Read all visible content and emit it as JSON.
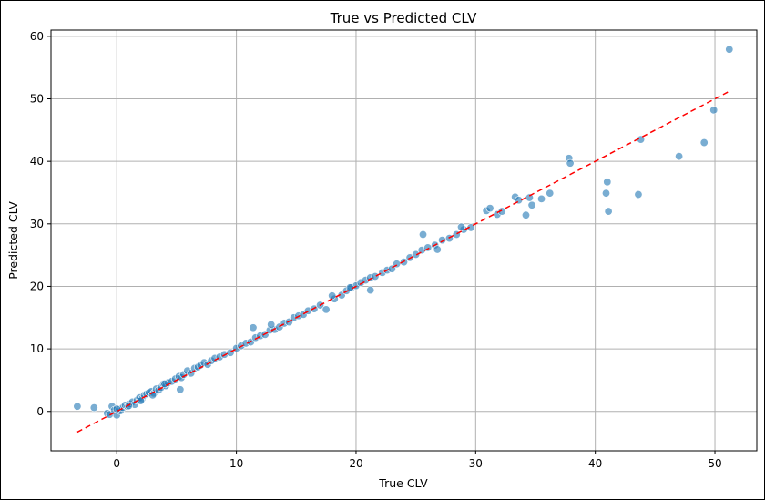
{
  "chart_data": {
    "type": "scatter",
    "title": "True vs Predicted CLV",
    "xlabel": "True CLV",
    "ylabel": "Predicted CLV",
    "xlim": [
      -5.5,
      53.5
    ],
    "ylim": [
      -6.3,
      61
    ],
    "xticks": [
      0,
      10,
      20,
      30,
      40,
      50
    ],
    "yticks": [
      0,
      10,
      20,
      30,
      40,
      50,
      60
    ],
    "grid": true,
    "point_color": "#1f77b4",
    "reference_line": {
      "x": [
        -3.3,
        51.2
      ],
      "y": [
        -3.3,
        51.2
      ],
      "color": "#ff0000",
      "style": "dashed"
    },
    "x": [
      -3.3,
      -1.9,
      -0.8,
      -0.6,
      -0.4,
      -0.2,
      0.0,
      0.2,
      0.3,
      0.5,
      0.7,
      0.9,
      1.1,
      1.3,
      1.5,
      1.7,
      1.9,
      2.1,
      2.3,
      2.5,
      2.7,
      2.9,
      3.1,
      3.3,
      3.5,
      3.7,
      3.9,
      4.1,
      4.3,
      4.6,
      4.9,
      5.2,
      5.4,
      5.6,
      5.9,
      6.2,
      6.5,
      6.8,
      7.0,
      7.3,
      7.6,
      7.9,
      8.2,
      8.6,
      9.0,
      9.5,
      10.0,
      10.4,
      10.8,
      11.2,
      11.6,
      12.0,
      12.4,
      12.8,
      13.2,
      13.6,
      14.0,
      14.4,
      14.8,
      15.2,
      15.6,
      16.0,
      16.5,
      17.0,
      17.5,
      18.2,
      18.8,
      19.2,
      19.6,
      20.0,
      20.4,
      20.8,
      21.2,
      21.6,
      22.2,
      22.6,
      23.0,
      23.4,
      24.0,
      24.5,
      25.0,
      25.5,
      26.0,
      26.6,
      27.2,
      27.8,
      28.4,
      29.0,
      29.6,
      0.0,
      1.0,
      2.0,
      3.0,
      4.0,
      5.3,
      11.4,
      12.9,
      18.0,
      19.5,
      21.2,
      25.6,
      26.8,
      28.8,
      30.9,
      31.2,
      31.8,
      32.2,
      33.3,
      33.6,
      34.2,
      34.5,
      34.7,
      35.5,
      36.2,
      37.8,
      37.9,
      40.9,
      41.0,
      41.1,
      43.6,
      43.8,
      47.0,
      49.1,
      49.9,
      51.2
    ],
    "y": [
      0.8,
      0.6,
      -0.3,
      -0.5,
      0.8,
      0.2,
      -0.6,
      0.3,
      0.1,
      0.6,
      1.0,
      0.8,
      1.2,
      1.5,
      1.1,
      1.8,
      2.2,
      2.0,
      2.6,
      2.8,
      3.0,
      3.2,
      2.9,
      3.6,
      3.4,
      3.8,
      4.4,
      4.1,
      4.6,
      4.8,
      5.2,
      5.6,
      5.4,
      5.9,
      6.5,
      6.1,
      6.9,
      7.1,
      7.4,
      7.8,
      7.5,
      8.1,
      8.5,
      8.7,
      9.1,
      9.4,
      10.1,
      10.5,
      10.9,
      11.1,
      11.8,
      12.1,
      12.3,
      13.0,
      13.1,
      13.5,
      14.1,
      14.3,
      15.0,
      15.3,
      15.5,
      16.1,
      16.4,
      17.0,
      16.3,
      18.0,
      18.6,
      19.3,
      19.8,
      20.1,
      20.6,
      21.0,
      21.4,
      21.6,
      22.2,
      22.6,
      22.8,
      23.6,
      23.9,
      24.6,
      25.1,
      25.8,
      26.2,
      26.6,
      27.4,
      27.7,
      28.3,
      29.1,
      29.4,
      0.4,
      0.9,
      1.7,
      2.6,
      4.4,
      3.5,
      13.4,
      13.9,
      18.5,
      19.8,
      19.4,
      28.3,
      25.9,
      29.5,
      32.1,
      32.5,
      31.5,
      32.0,
      34.3,
      33.8,
      31.4,
      34.2,
      33.0,
      34.0,
      34.9,
      40.5,
      39.7,
      34.9,
      36.7,
      32.0,
      34.7,
      43.5,
      40.8,
      43.0,
      48.2,
      57.9
    ]
  }
}
